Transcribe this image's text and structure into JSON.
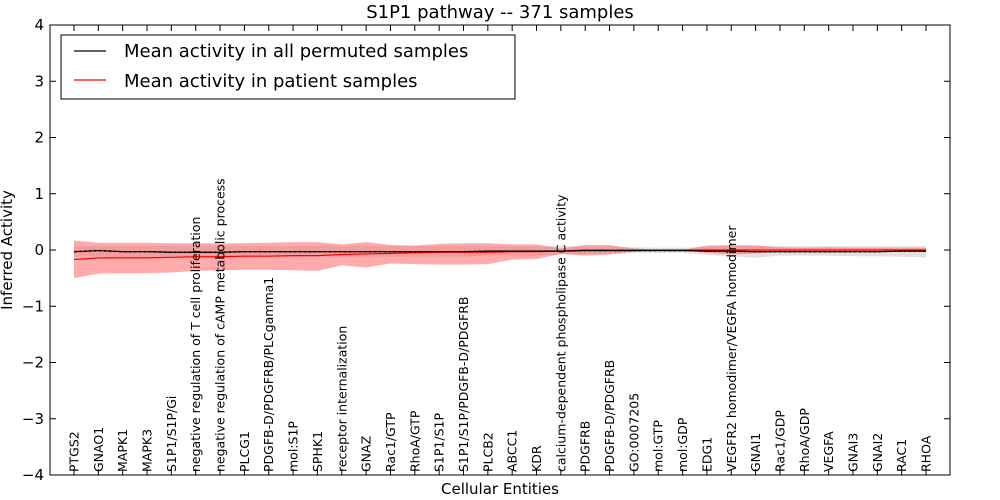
{
  "chart_data": {
    "type": "line",
    "title": "S1P1 pathway -- 371 samples",
    "xlabel": "Cellular Entities",
    "ylabel": "Inferred Activity",
    "ylim": [
      -4,
      4
    ],
    "yticks": [
      4,
      3,
      2,
      1,
      0,
      -1,
      -2,
      -3,
      -4
    ],
    "ytick_labels": [
      "4",
      "3",
      "2",
      "1",
      "0",
      "−1",
      "−2",
      "−3",
      "−4"
    ],
    "grid": false,
    "legend_position": "top-left",
    "colors": {
      "permuted": "#000000",
      "patient": "#ff0000",
      "permuted_band": "#bdbdbd",
      "patient_band": "#ff6666"
    },
    "categories": [
      "PTGS2",
      "GNAO1",
      "MAPK1",
      "MAPK3",
      "S1P1/S1P/Gi",
      "negative regulation of T cell proliferation",
      "negative regulation of cAMP metabolic process",
      "PLCG1",
      "PDGFB-D/PDGFRB/PLCgamma1",
      "mol:S1P",
      "SPHK1",
      "receptor internalization",
      "GNAZ",
      "Rac1/GTP",
      "RhoA/GTP",
      "S1P1/S1P",
      "S1P1/S1P/PDGFB-D/PDGFRB",
      "PLCB2",
      "ABCC1",
      "KDR",
      "calcium-dependent phospholipase C activity",
      "PDGFRB",
      "PDGFB-D/PDGFRB",
      "GO:0007205",
      "mol:GTP",
      "mol:GDP",
      "EDG1",
      "VEGFR2 homodimer/VEGFA homodimer",
      "GNAI1",
      "Rac1/GDP",
      "RhoA/GDP",
      "VEGFA",
      "GNAI3",
      "GNAI2",
      "RAC1",
      "RHOA"
    ],
    "series": [
      {
        "name": "Mean activity in all permuted samples",
        "values": [
          -0.03,
          -0.01,
          -0.03,
          -0.03,
          -0.04,
          -0.04,
          -0.04,
          -0.03,
          -0.03,
          -0.03,
          -0.03,
          -0.03,
          -0.03,
          -0.03,
          -0.03,
          -0.03,
          -0.03,
          -0.02,
          -0.02,
          -0.02,
          -0.02,
          -0.01,
          -0.01,
          -0.01,
          -0.01,
          -0.01,
          -0.02,
          -0.02,
          -0.03,
          -0.03,
          -0.03,
          -0.03,
          -0.03,
          -0.03,
          -0.02,
          -0.02
        ],
        "std_upper": [
          0.06,
          0.08,
          0.07,
          0.07,
          0.07,
          0.07,
          0.07,
          0.07,
          0.07,
          0.07,
          0.07,
          0.07,
          0.07,
          0.07,
          0.07,
          0.07,
          0.07,
          0.07,
          0.07,
          0.07,
          0.07,
          0.06,
          0.06,
          0.05,
          0.04,
          0.04,
          0.06,
          0.07,
          0.08,
          0.07,
          0.07,
          0.07,
          0.07,
          0.07,
          0.07,
          0.07
        ],
        "std_lower": [
          -0.12,
          -0.11,
          -0.12,
          -0.12,
          -0.13,
          -0.13,
          -0.13,
          -0.12,
          -0.12,
          -0.12,
          -0.12,
          -0.12,
          -0.12,
          -0.12,
          -0.12,
          -0.12,
          -0.12,
          -0.1,
          -0.1,
          -0.1,
          -0.08,
          -0.07,
          -0.07,
          -0.05,
          -0.05,
          -0.05,
          -0.09,
          -0.11,
          -0.14,
          -0.1,
          -0.1,
          -0.1,
          -0.11,
          -0.11,
          -0.12,
          -0.13
        ]
      },
      {
        "name": "Mean activity in patient samples",
        "values": [
          -0.17,
          -0.14,
          -0.14,
          -0.14,
          -0.13,
          -0.12,
          -0.12,
          -0.11,
          -0.11,
          -0.1,
          -0.1,
          -0.08,
          -0.07,
          -0.06,
          -0.05,
          -0.04,
          -0.04,
          -0.04,
          -0.03,
          -0.03,
          -0.02,
          0.0,
          0.0,
          0.0,
          0.0,
          0.0,
          0.0,
          0.0,
          0.0,
          0.0,
          0.0,
          0.0,
          0.0,
          0.0,
          0.0,
          0.0
        ],
        "std_upper": [
          0.17,
          0.13,
          0.13,
          0.13,
          0.12,
          0.12,
          0.12,
          0.12,
          0.13,
          0.14,
          0.14,
          0.1,
          0.14,
          0.09,
          0.08,
          0.11,
          0.12,
          0.12,
          0.1,
          0.1,
          0.03,
          0.09,
          0.09,
          0.03,
          0.0,
          0.0,
          0.08,
          0.09,
          0.08,
          0.05,
          0.04,
          0.05,
          0.04,
          0.04,
          0.04,
          0.04
        ],
        "std_lower": [
          -0.5,
          -0.42,
          -0.41,
          -0.41,
          -0.4,
          -0.37,
          -0.36,
          -0.35,
          -0.35,
          -0.36,
          -0.37,
          -0.27,
          -0.31,
          -0.24,
          -0.25,
          -0.26,
          -0.26,
          -0.25,
          -0.17,
          -0.16,
          -0.07,
          -0.1,
          -0.08,
          -0.03,
          0.0,
          0.0,
          -0.05,
          -0.08,
          -0.06,
          -0.03,
          -0.02,
          -0.02,
          -0.02,
          -0.02,
          -0.02,
          -0.02
        ]
      }
    ]
  }
}
